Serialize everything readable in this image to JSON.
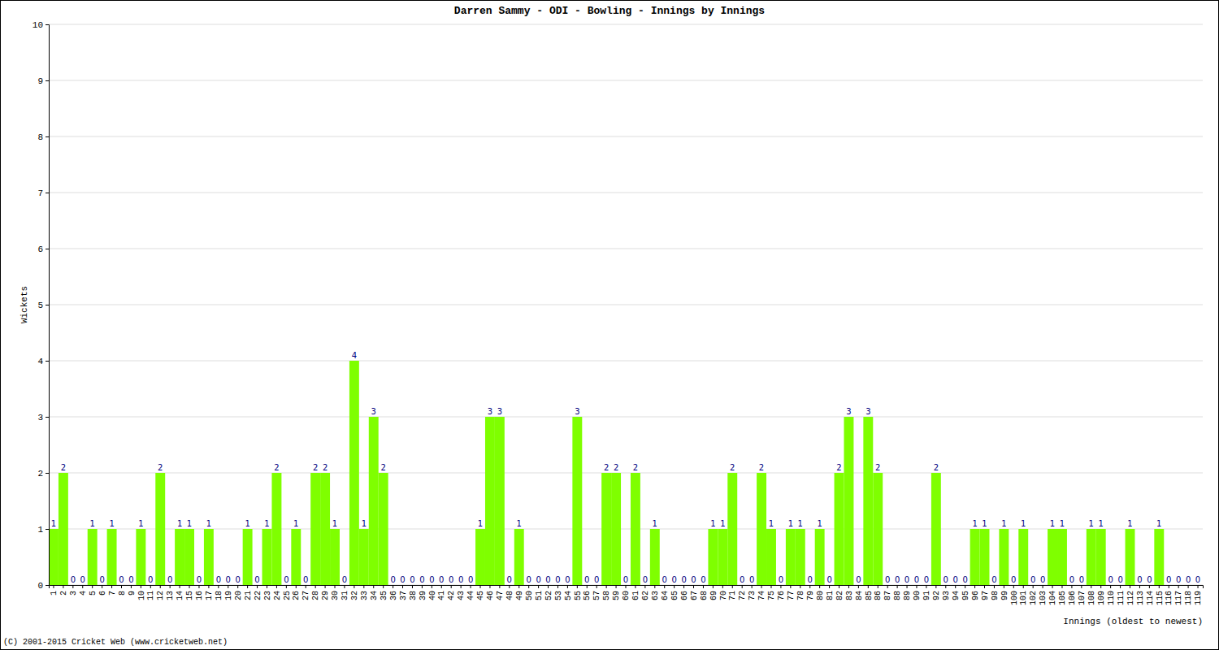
{
  "chart_data": {
    "type": "bar",
    "title": "Darren Sammy - ODI - Bowling - Innings by Innings",
    "x_label": "Innings (oldest to newest)",
    "y_label": "Wickets",
    "annotation": "(C) 2001-2015 Cricket Web (www.cricketweb.net)",
    "categories": [
      "1",
      "2",
      "3",
      "4",
      "5",
      "6",
      "7",
      "8",
      "9",
      "10",
      "11",
      "12",
      "13",
      "14",
      "15",
      "16",
      "17",
      "18",
      "19",
      "20",
      "21",
      "22",
      "23",
      "24",
      "25",
      "26",
      "27",
      "28",
      "29",
      "30",
      "31",
      "32",
      "33",
      "34",
      "35",
      "36",
      "37",
      "38",
      "39",
      "40",
      "41",
      "42",
      "43",
      "44",
      "45",
      "46",
      "47",
      "48",
      "49",
      "50",
      "51",
      "52",
      "53",
      "54",
      "55",
      "56",
      "57",
      "58",
      "59",
      "60",
      "61",
      "62",
      "63",
      "64",
      "65",
      "66",
      "67",
      "68",
      "69",
      "70",
      "71",
      "72",
      "73",
      "74",
      "75",
      "76",
      "77",
      "78",
      "79",
      "80",
      "81",
      "82",
      "83",
      "84",
      "85",
      "86",
      "87",
      "88",
      "89",
      "90",
      "91",
      "92",
      "93",
      "94",
      "95",
      "96",
      "97",
      "98",
      "99",
      "100",
      "101",
      "102",
      "103",
      "104",
      "105",
      "106",
      "107",
      "108",
      "109",
      "110",
      "111",
      "112",
      "113",
      "114",
      "115",
      "116",
      "117",
      "118",
      "119"
    ],
    "values": [
      1,
      2,
      0,
      0,
      1,
      0,
      1,
      0,
      0,
      1,
      0,
      2,
      0,
      1,
      1,
      0,
      1,
      0,
      0,
      0,
      1,
      0,
      1,
      2,
      0,
      1,
      0,
      2,
      2,
      1,
      0,
      4,
      1,
      3,
      2,
      0,
      0,
      0,
      0,
      0,
      0,
      0,
      0,
      0,
      1,
      3,
      3,
      0,
      1,
      0,
      0,
      0,
      0,
      0,
      3,
      0,
      0,
      2,
      2,
      0,
      2,
      0,
      1,
      0,
      0,
      0,
      0,
      0,
      1,
      1,
      2,
      0,
      0,
      2,
      1,
      0,
      1,
      1,
      0,
      1,
      0,
      2,
      3,
      0,
      3,
      2,
      0,
      0,
      0,
      0,
      0,
      2,
      0,
      0,
      0,
      1,
      1,
      0,
      1,
      0,
      1,
      0,
      0,
      1,
      1,
      0,
      0,
      1,
      1,
      0,
      0,
      1,
      0,
      0,
      1,
      0,
      0,
      0,
      0
    ],
    "color": "#7fff00",
    "ylim": [
      0,
      10
    ],
    "yticks": [
      0,
      1,
      2,
      3,
      4,
      5,
      6,
      7,
      8,
      9,
      10
    ],
    "grid": true,
    "data_labels": true
  }
}
